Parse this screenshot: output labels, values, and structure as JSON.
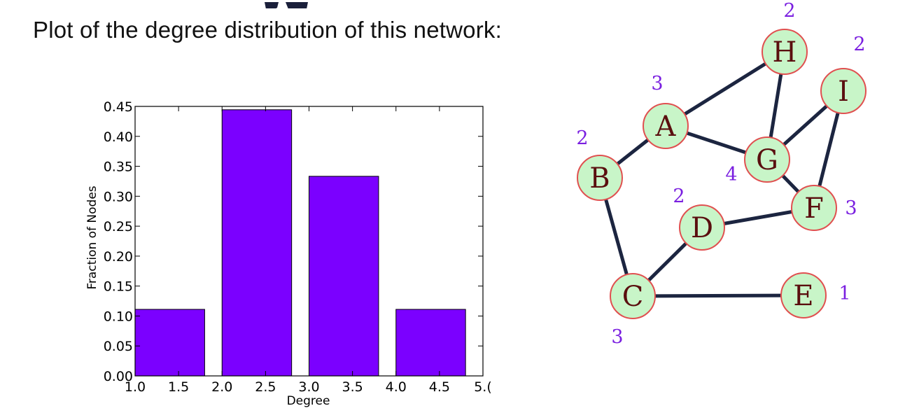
{
  "slide": {
    "intro_text": "Plot of the degree distribution of this network:"
  },
  "chart_data": {
    "type": "bar",
    "title": "",
    "xlabel": "Degree",
    "ylabel": "Fraction of Nodes",
    "xlim": [
      1.0,
      5.0
    ],
    "ylim": [
      0.0,
      0.45
    ],
    "x_ticks": [
      "1.0",
      "1.5",
      "2.0",
      "2.5",
      "3.0",
      "3.5",
      "4.0",
      "4.5",
      "5.("
    ],
    "y_ticks": [
      "0.00",
      "0.05",
      "0.10",
      "0.15",
      "0.20",
      "0.25",
      "0.30",
      "0.35",
      "0.40",
      "0.45"
    ],
    "bars": [
      {
        "start": 1.0,
        "end": 1.8,
        "value": 0.1111
      },
      {
        "start": 2.0,
        "end": 2.8,
        "value": 0.4444
      },
      {
        "start": 3.0,
        "end": 3.8,
        "value": 0.3333
      },
      {
        "start": 4.0,
        "end": 4.8,
        "value": 0.1111
      }
    ],
    "bar_color": "#7b00ff",
    "grid": false
  },
  "network": {
    "nodes": [
      {
        "id": "H",
        "degree": "2"
      },
      {
        "id": "I",
        "degree": "2"
      },
      {
        "id": "A",
        "degree": "3"
      },
      {
        "id": "B",
        "degree": "2"
      },
      {
        "id": "G",
        "degree": "4"
      },
      {
        "id": "D",
        "degree": "2"
      },
      {
        "id": "F",
        "degree": "3"
      },
      {
        "id": "C",
        "degree": "3"
      },
      {
        "id": "E",
        "degree": "1"
      }
    ],
    "edges": [
      [
        "A",
        "H"
      ],
      [
        "A",
        "G"
      ],
      [
        "A",
        "B"
      ],
      [
        "H",
        "G"
      ],
      [
        "I",
        "G"
      ],
      [
        "I",
        "F"
      ],
      [
        "G",
        "F"
      ],
      [
        "B",
        "C"
      ],
      [
        "D",
        "F"
      ],
      [
        "D",
        "C"
      ],
      [
        "C",
        "E"
      ]
    ],
    "node_fill": "#c8f5c8",
    "node_stroke": "#e05050",
    "edge_color": "#1c2540",
    "label_color": "#7a1fe0"
  }
}
